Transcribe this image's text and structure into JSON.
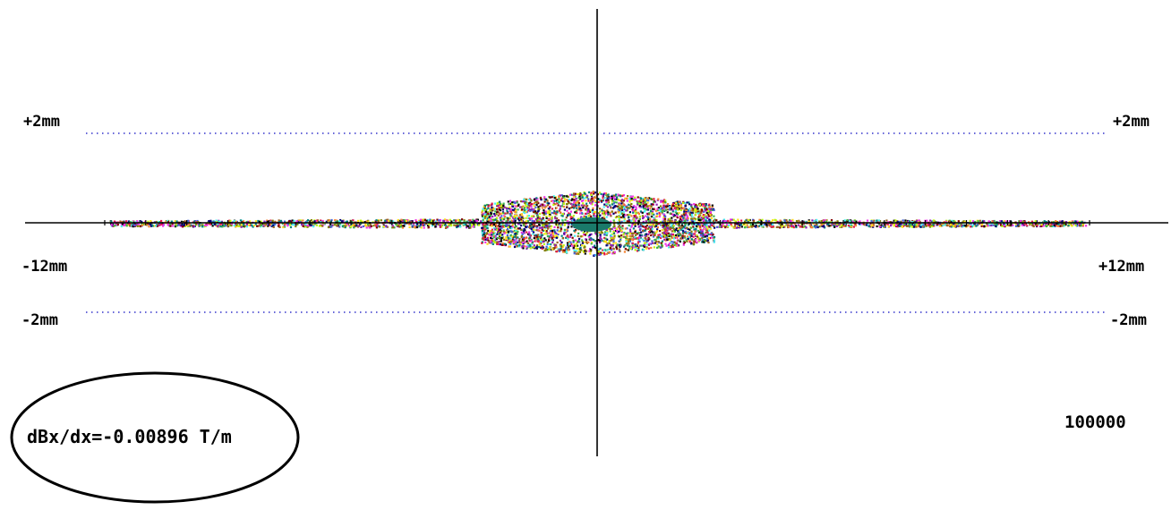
{
  "labels": {
    "top_left": "+2mm",
    "top_right": "+2mm",
    "axis_left": "-12mm",
    "axis_right": "+12mm",
    "bottom_left": "-2mm",
    "bottom_right": "-2mm",
    "count": "100000",
    "gradient_readout": "dBx/dx=-0.00896 T/m"
  },
  "colors": {
    "axis": "#000000",
    "guide_line": "#3333cc",
    "core": "#1a7a6a",
    "particles": [
      "#e6194b",
      "#3cb44b",
      "#4363d8",
      "#f58231",
      "#911eb4",
      "#46f0f0",
      "#f032e6",
      "#bcf60c",
      "#008080",
      "#9a6324",
      "#800000",
      "#000075",
      "#808000",
      "#000000",
      "#ffe119"
    ]
  },
  "chart_data": {
    "type": "scatter",
    "xlabel": "",
    "ylabel": "",
    "xlim": [
      -12,
      12
    ],
    "ylim": [
      -2,
      2
    ],
    "x_unit": "mm",
    "y_unit": "mm",
    "guide_lines_y": [
      2,
      -2
    ],
    "particle_count": 100000,
    "annotation": "dBx/dx=-0.00896 T/m"
  }
}
